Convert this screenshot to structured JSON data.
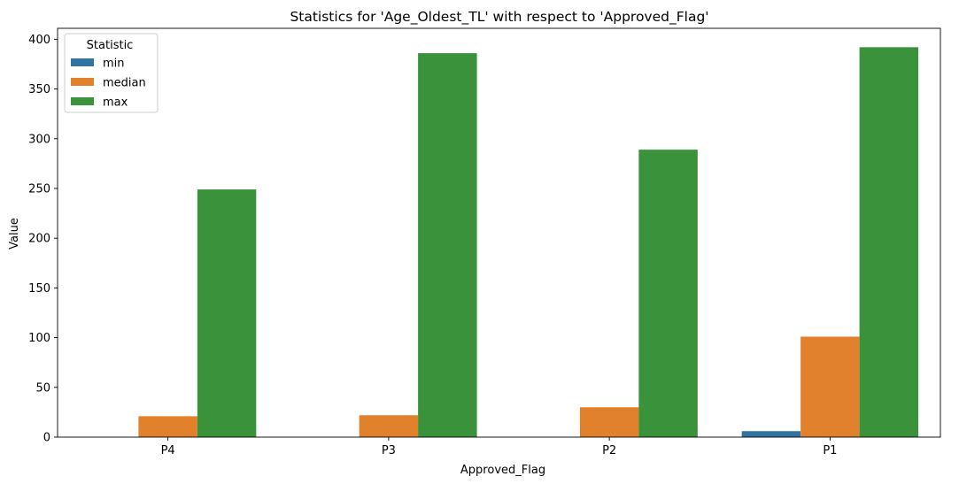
{
  "chart_data": {
    "type": "bar",
    "title": "Statistics for 'Age_Oldest_TL' with respect to 'Approved_Flag'",
    "xlabel": "Approved_Flag",
    "ylabel": "Value",
    "categories": [
      "P4",
      "P3",
      "P2",
      "P1"
    ],
    "series": [
      {
        "name": "min",
        "color": "#3274a1",
        "values": [
          0,
          0,
          0,
          6
        ]
      },
      {
        "name": "median",
        "color": "#e1812c",
        "values": [
          21,
          22,
          30,
          101
        ]
      },
      {
        "name": "max",
        "color": "#3a923a",
        "values": [
          249,
          386,
          289,
          392
        ]
      }
    ],
    "ylim": [
      0,
      411
    ],
    "yticks": [
      0,
      50,
      100,
      150,
      200,
      250,
      300,
      350,
      400
    ],
    "legend": {
      "title": "Statistic",
      "position": "top-left"
    },
    "grid": false
  }
}
